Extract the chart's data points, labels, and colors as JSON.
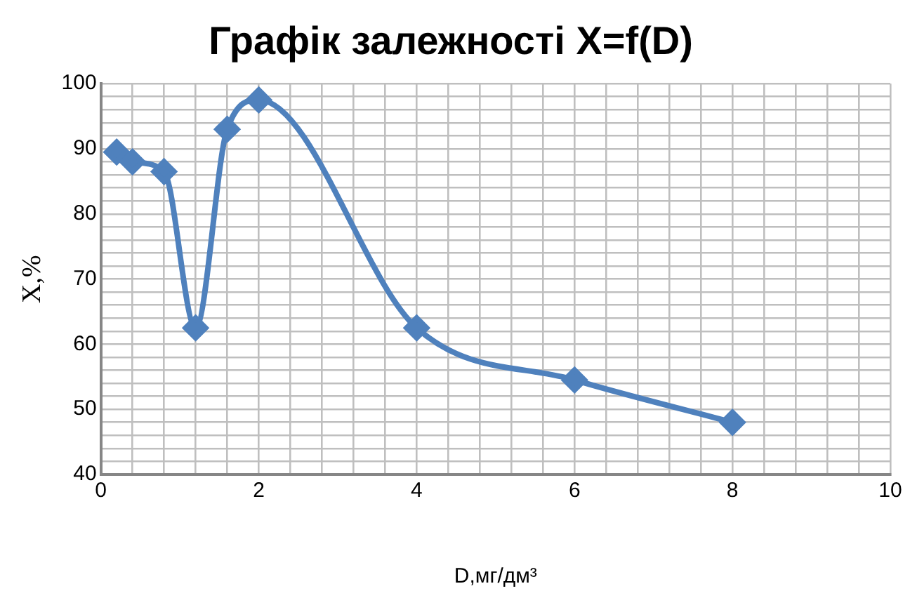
{
  "chart_data": {
    "type": "line",
    "title": "Графік залежності X=f(D)",
    "xlabel": "D,мг/дм³",
    "ylabel": "X,%",
    "x": [
      0.2,
      0.4,
      0.8,
      1.2,
      1.6,
      2,
      4,
      6,
      8
    ],
    "series": [
      {
        "color": "#4f81bd",
        "values": [
          89.5,
          88,
          86.5,
          62.5,
          93,
          97.5,
          62.5,
          54.5,
          48
        ]
      }
    ],
    "xlim": [
      0,
      10
    ],
    "xticks": [
      0,
      {
        "value": 0.4,
        "label": null
      },
      {
        "value": 0.8,
        "label": null
      },
      {
        "value": 1.2,
        "label": null
      },
      {
        "value": 1.6,
        "label": null
      },
      2,
      {
        "value": 2.4,
        "label": null
      },
      {
        "value": 2.8,
        "label": null
      },
      {
        "value": 3.2,
        "label": null
      },
      {
        "value": 3.6,
        "label": null
      },
      4,
      {
        "value": 4.4,
        "label": null
      },
      {
        "value": 4.8,
        "label": null
      },
      {
        "value": 5.2,
        "label": null
      },
      {
        "value": 5.6,
        "label": null
      },
      6,
      {
        "value": 6.4,
        "label": null
      },
      {
        "value": 6.8,
        "label": null
      },
      {
        "value": 7.2,
        "label": null
      },
      {
        "value": 7.6,
        "label": null
      },
      8,
      {
        "value": 8.4,
        "label": null
      },
      {
        "value": 8.8,
        "label": null
      },
      {
        "value": 9.2,
        "label": null
      },
      {
        "value": 9.6,
        "label": null
      },
      10
    ],
    "ylim": [
      40,
      100
    ],
    "yticks": [
      40,
      {
        "value": 42,
        "label": null
      },
      {
        "value": 44,
        "label": null
      },
      {
        "value": 46,
        "label": null
      },
      {
        "value": 48,
        "label": null
      },
      50,
      {
        "value": 52,
        "label": null
      },
      {
        "value": 54,
        "label": null
      },
      {
        "value": 56,
        "label": null
      },
      {
        "value": 58,
        "label": null
      },
      60,
      {
        "value": 62,
        "label": null
      },
      {
        "value": 64,
        "label": null
      },
      {
        "value": 66,
        "label": null
      },
      {
        "value": 68,
        "label": null
      },
      70,
      {
        "value": 72,
        "label": null
      },
      {
        "value": 74,
        "label": null
      },
      {
        "value": 76,
        "label": null
      },
      {
        "value": 78,
        "label": null
      },
      80,
      {
        "value": 82,
        "label": null
      },
      {
        "value": 84,
        "label": null
      },
      {
        "value": 86,
        "label": null
      },
      {
        "value": 88,
        "label": null
      },
      90,
      {
        "value": 92,
        "label": null
      },
      {
        "value": 94,
        "label": null
      },
      {
        "value": 96,
        "label": null
      },
      {
        "value": 98,
        "label": null
      },
      100
    ],
    "grid": true,
    "legend": false,
    "marker": "diamond",
    "line_style": "solid"
  }
}
